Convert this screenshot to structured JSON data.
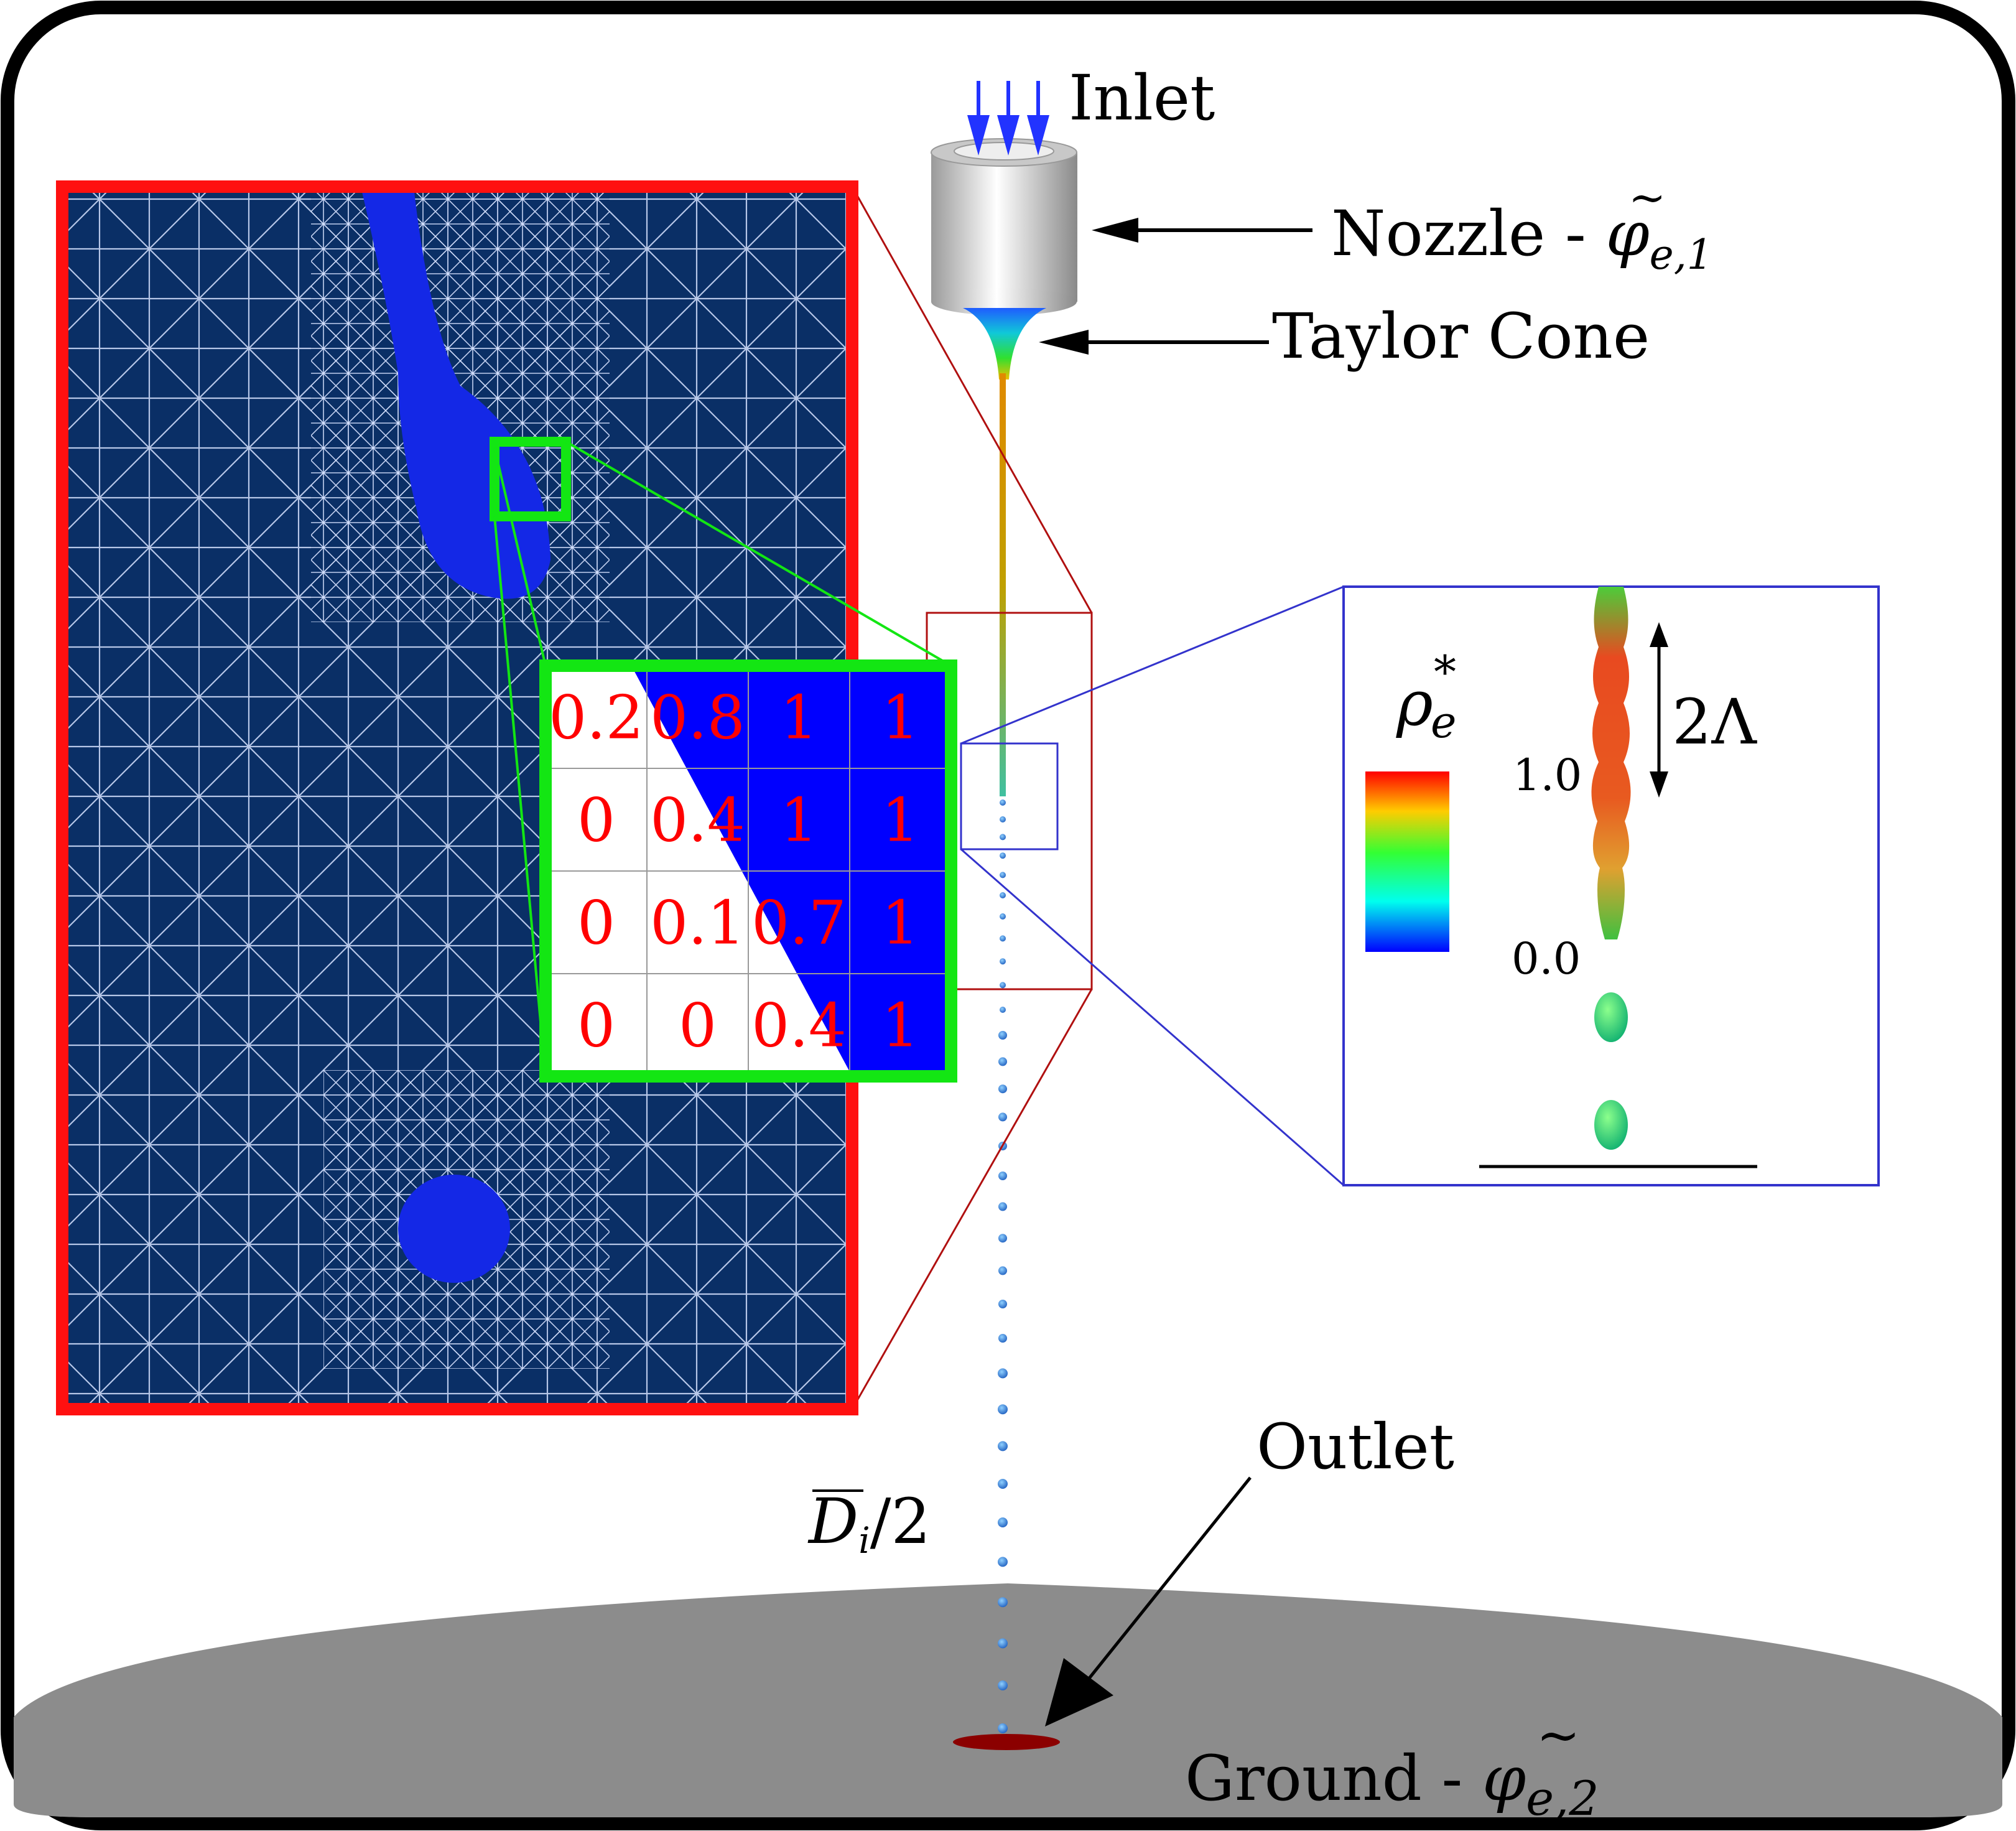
{
  "labels": {
    "inlet": "Inlet",
    "nozzle": "Nozzle - ",
    "nozzle_math": "φ",
    "nozzle_sub": "e,1",
    "taylor_cone": "Taylor Cone",
    "outlet": "Outlet",
    "ground": "Ground - ",
    "ground_math": "φ",
    "ground_sub": "e,2",
    "droplet_diameter": "D",
    "droplet_diameter_sub": "i",
    "droplet_diameter_suffix": "/2",
    "wavelength": "2Λ",
    "colorbar_symbol": "ρ",
    "colorbar_sup": "*",
    "colorbar_sub": "e",
    "colorbar_max": "1.0",
    "colorbar_min": "0.0"
  },
  "volume_fraction_grid": [
    [
      "0.2",
      "0.8",
      "1",
      "1"
    ],
    [
      "0",
      "0.4",
      "1",
      "1"
    ],
    [
      "0",
      "0.1",
      "0.7",
      "1"
    ],
    [
      "0",
      "0",
      "0.4",
      "1"
    ]
  ],
  "colors": {
    "mesh_background": "#0a2f66",
    "liquid": "#1428e6",
    "mesh_zoom_frame": "#ff1010",
    "cell_zoom_frame": "#13e613",
    "jet_zoom_frame": "#3333cc",
    "ground": "#8c8c8c",
    "outlet": "#8b0000",
    "inlet_arrows": "#2233ff"
  }
}
